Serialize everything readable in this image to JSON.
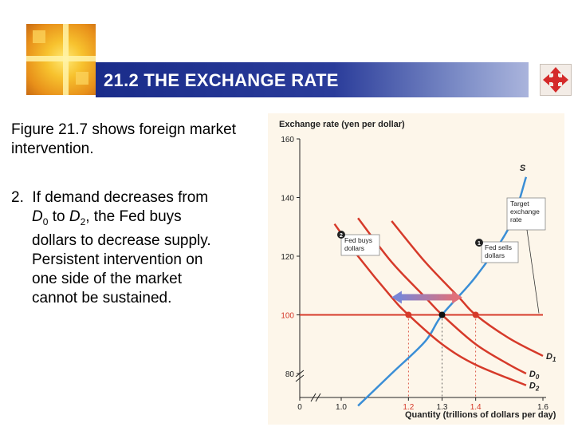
{
  "slide": {
    "title": "21.2 THE EXCHANGE RATE",
    "para1": "Figure 21.7 shows foreign market intervention.",
    "para2": {
      "num": "2.",
      "seg1": "If demand decreases from",
      "d0": "D",
      "d0_sub": "0",
      "to": " to ",
      "d2": "D",
      "d2_sub": "2",
      "seg2": ", the Fed buys",
      "line3": "dollars to decrease supply.",
      "line4": "Persistent intervention on",
      "line5": "one side of the market",
      "line6": "cannot be sustained."
    },
    "nav_icon": "four-way-arrows-icon"
  },
  "colors": {
    "title_band": "#1a2c8a",
    "supply": "#3a8ed6",
    "demand": "#d63a2a",
    "target": "#d63a2a",
    "marker": "#5b5bd6",
    "chart_bg": "#fdf6ea"
  },
  "chart_data": {
    "type": "line",
    "ylabel": "Exchange rate (yen per dollar)",
    "xlabel": "Quantity (trillions of dollars per day)",
    "xlim": [
      0.95,
      1.6
    ],
    "ylim": [
      70,
      160
    ],
    "x_ticks": [
      "0",
      "1.0",
      "1.2",
      "1.3",
      "1.4",
      "1.6"
    ],
    "y_ticks": [
      "80",
      "100",
      "120",
      "140",
      "160"
    ],
    "target_rate": 100,
    "series": [
      {
        "name": "S",
        "type": "supply",
        "x": [
          1.05,
          1.15,
          1.25,
          1.3,
          1.4,
          1.5,
          1.55
        ],
        "y": [
          69,
          80,
          91,
          100,
          113,
          130,
          147
        ]
      },
      {
        "name": "D1",
        "type": "demand",
        "x": [
          1.15,
          1.25,
          1.35,
          1.4,
          1.5,
          1.6
        ],
        "y": [
          132,
          118,
          106,
          100,
          92,
          86
        ]
      },
      {
        "name": "D0",
        "type": "demand",
        "x": [
          1.05,
          1.15,
          1.25,
          1.3,
          1.4,
          1.5,
          1.55
        ],
        "y": [
          133,
          118,
          106,
          100,
          90,
          83,
          80
        ]
      },
      {
        "name": "D2",
        "type": "demand",
        "x": [
          0.98,
          1.05,
          1.15,
          1.2,
          1.3,
          1.4,
          1.55
        ],
        "y": [
          131,
          120,
          106,
          100,
          90,
          83,
          76
        ]
      }
    ],
    "points": [
      {
        "x": 1.2,
        "y": 100
      },
      {
        "x": 1.3,
        "y": 100
      },
      {
        "x": 1.4,
        "y": 100
      }
    ],
    "annotations": {
      "target": "Target exchange rate",
      "fed_buys": "Fed buys dollars",
      "fed_sells": "Fed sells dollars",
      "marker1": "1",
      "marker2": "2"
    }
  }
}
